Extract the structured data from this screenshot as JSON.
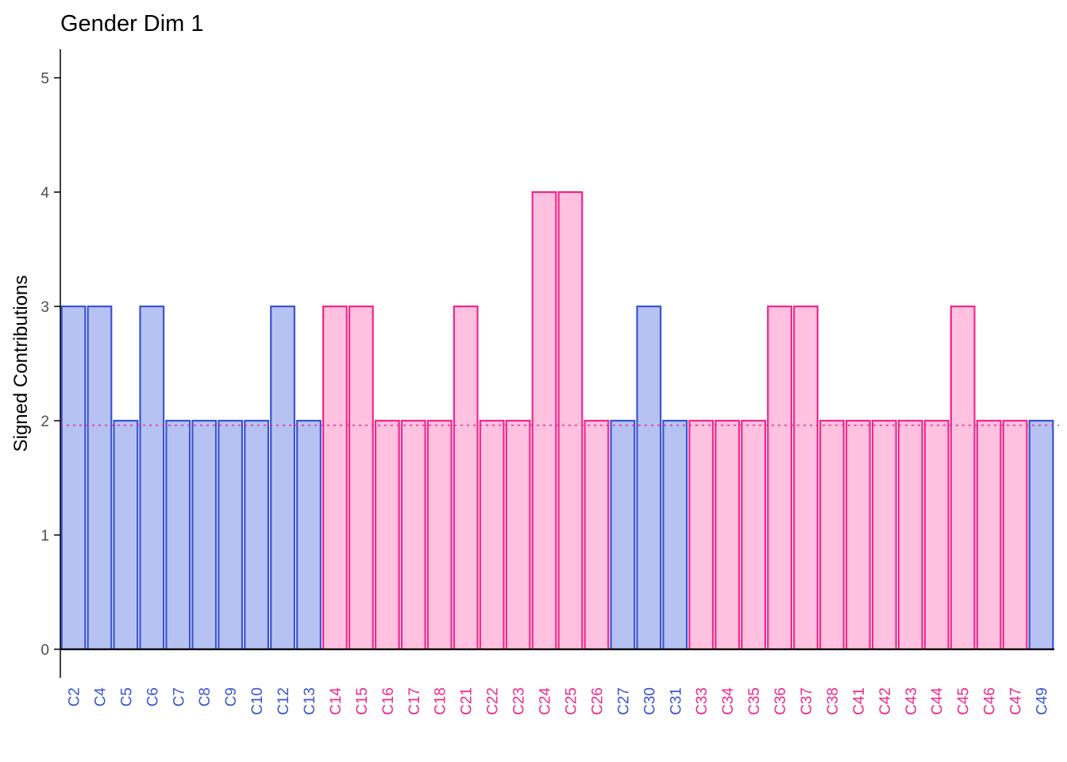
{
  "chart_data": {
    "type": "bar",
    "title": "Gender Dim 1",
    "xlabel": "",
    "ylabel": "Signed Contributions",
    "ylim": [
      -0.25,
      5.25
    ],
    "yticks": [
      0,
      1,
      2,
      3,
      4,
      5
    ],
    "grid": false,
    "legend": "none",
    "reference_line": 1.96,
    "colors": {
      "blue": {
        "fill": "#b6c3f2",
        "stroke": "#3a52d4",
        "text": "#3a52d4"
      },
      "pink": {
        "fill": "#fec1e0",
        "stroke": "#f0278c",
        "text": "#f0278c"
      },
      "reference_line": "#f0278c",
      "axis": "#000000"
    },
    "categories": [
      "C2",
      "C4",
      "C5",
      "C6",
      "C7",
      "C8",
      "C9",
      "C10",
      "C12",
      "C13",
      "C14",
      "C15",
      "C16",
      "C17",
      "C18",
      "C21",
      "C22",
      "C23",
      "C24",
      "C25",
      "C26",
      "C27",
      "C30",
      "C31",
      "C33",
      "C34",
      "C35",
      "C36",
      "C37",
      "C38",
      "C41",
      "C42",
      "C43",
      "C44",
      "C45",
      "C46",
      "C47",
      "C49"
    ],
    "values": [
      3,
      3,
      2,
      3,
      2,
      2,
      2,
      2,
      3,
      2,
      3,
      3,
      2,
      2,
      2,
      3,
      2,
      2,
      4,
      4,
      2,
      2,
      3,
      2,
      2,
      2,
      2,
      3,
      3,
      2,
      2,
      2,
      2,
      2,
      3,
      2,
      2,
      2
    ],
    "groups": [
      "blue",
      "blue",
      "blue",
      "blue",
      "blue",
      "blue",
      "blue",
      "blue",
      "blue",
      "blue",
      "pink",
      "pink",
      "pink",
      "pink",
      "pink",
      "pink",
      "pink",
      "pink",
      "pink",
      "pink",
      "pink",
      "blue",
      "blue",
      "blue",
      "pink",
      "pink",
      "pink",
      "pink",
      "pink",
      "pink",
      "pink",
      "pink",
      "pink",
      "pink",
      "pink",
      "pink",
      "pink",
      "blue"
    ]
  }
}
